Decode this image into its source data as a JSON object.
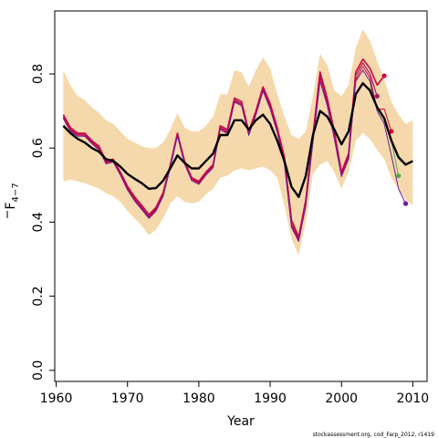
{
  "chart_data": {
    "type": "line",
    "xlabel": "Year",
    "ylabel": "F",
    "ylabel_subscript": "4−7",
    "footer": "stockassessment.org, cod_Farp_2012, r1419",
    "xlim": [
      1959.8,
      2012.0
    ],
    "ylim": [
      -0.03,
      0.97
    ],
    "x_ticks": [
      1960,
      1970,
      1980,
      1990,
      2000,
      2010
    ],
    "y_ticks": [
      0.0,
      0.2,
      0.4,
      0.6,
      0.8
    ],
    "y_tick_labels": [
      "0.0",
      "0.2",
      "0.4",
      "0.6",
      "0.8"
    ],
    "colors": {
      "band": "#f5d9ac",
      "main": "#000000",
      "retro_a": "#d6003a",
      "retro_b": "#9a1a6a",
      "retro_c": "#6a1a9a",
      "retro_d": "#5aa84a"
    },
    "band": {
      "x": [
        1961,
        1962,
        1963,
        1964,
        1965,
        1966,
        1967,
        1968,
        1969,
        1970,
        1971,
        1972,
        1973,
        1974,
        1975,
        1976,
        1977,
        1978,
        1979,
        1980,
        1981,
        1982,
        1983,
        1984,
        1985,
        1986,
        1987,
        1988,
        1989,
        1990,
        1991,
        1992,
        1993,
        1994,
        1995,
        1996,
        1997,
        1998,
        1999,
        2000,
        2001,
        2002,
        2003,
        2004,
        2005,
        2006,
        2007,
        2008,
        2009,
        2010
      ],
      "upper": [
        0.81,
        0.77,
        0.74,
        0.73,
        0.71,
        0.695,
        0.675,
        0.665,
        0.645,
        0.625,
        0.615,
        0.605,
        0.6,
        0.6,
        0.615,
        0.65,
        0.695,
        0.655,
        0.645,
        0.645,
        0.66,
        0.685,
        0.745,
        0.745,
        0.81,
        0.805,
        0.765,
        0.81,
        0.845,
        0.815,
        0.745,
        0.685,
        0.635,
        0.625,
        0.645,
        0.74,
        0.855,
        0.825,
        0.755,
        0.74,
        0.77,
        0.87,
        0.92,
        0.89,
        0.835,
        0.785,
        0.725,
        0.69,
        0.665,
        0.675
      ],
      "lower": [
        0.51,
        0.515,
        0.51,
        0.505,
        0.498,
        0.49,
        0.478,
        0.47,
        0.455,
        0.43,
        0.41,
        0.39,
        0.365,
        0.38,
        0.41,
        0.45,
        0.47,
        0.455,
        0.45,
        0.455,
        0.475,
        0.49,
        0.52,
        0.525,
        0.54,
        0.545,
        0.54,
        0.545,
        0.55,
        0.54,
        0.52,
        0.445,
        0.355,
        0.31,
        0.4,
        0.53,
        0.555,
        0.565,
        0.535,
        0.49,
        0.535,
        0.62,
        0.64,
        0.625,
        0.595,
        0.57,
        0.52,
        0.49,
        0.46,
        0.445
      ]
    },
    "series": [
      {
        "color": "main",
        "width": 2.4,
        "x": [
          1961,
          1962,
          1963,
          1964,
          1965,
          1966,
          1967,
          1968,
          1969,
          1970,
          1971,
          1972,
          1973,
          1974,
          1975,
          1976,
          1977,
          1978,
          1979,
          1980,
          1981,
          1982,
          1983,
          1984,
          1985,
          1986,
          1987,
          1988,
          1989,
          1990,
          1991,
          1992,
          1993,
          1994,
          1995,
          1996,
          1997,
          1998,
          1999,
          2000,
          2001,
          2002,
          2003,
          2004,
          2005,
          2006,
          2007,
          2008,
          2009,
          2010
        ],
        "y": [
          0.66,
          0.64,
          0.625,
          0.615,
          0.6,
          0.59,
          0.57,
          0.565,
          0.55,
          0.53,
          0.517,
          0.505,
          0.49,
          0.492,
          0.512,
          0.545,
          0.58,
          0.56,
          0.545,
          0.545,
          0.565,
          0.585,
          0.635,
          0.635,
          0.675,
          0.675,
          0.65,
          0.675,
          0.69,
          0.665,
          0.62,
          0.565,
          0.495,
          0.468,
          0.525,
          0.635,
          0.7,
          0.685,
          0.65,
          0.61,
          0.645,
          0.745,
          0.775,
          0.755,
          0.71,
          0.68,
          0.62,
          0.575,
          0.555,
          0.565
        ]
      },
      {
        "color": "retro_a",
        "width": 1.6,
        "marker_year": 2006,
        "marker_value": 0.795,
        "x": [
          1961,
          1962,
          1963,
          1964,
          1965,
          1966,
          1967,
          1968,
          1969,
          1970,
          1971,
          1972,
          1973,
          1974,
          1975,
          1976,
          1977,
          1978,
          1979,
          1980,
          1981,
          1982,
          1983,
          1984,
          1985,
          1986,
          1987,
          1988,
          1989,
          1990,
          1991,
          1992,
          1993,
          1994,
          1995,
          1996,
          1997,
          1998,
          1999,
          2000,
          2001,
          2002,
          2003,
          2004,
          2005,
          2006
        ],
        "y": [
          0.69,
          0.655,
          0.64,
          0.64,
          0.62,
          0.605,
          0.565,
          0.57,
          0.535,
          0.497,
          0.468,
          0.445,
          0.42,
          0.44,
          0.48,
          0.555,
          0.64,
          0.565,
          0.52,
          0.51,
          0.535,
          0.555,
          0.66,
          0.65,
          0.735,
          0.725,
          0.645,
          0.7,
          0.765,
          0.72,
          0.655,
          0.575,
          0.405,
          0.36,
          0.46,
          0.635,
          0.805,
          0.735,
          0.645,
          0.535,
          0.585,
          0.805,
          0.84,
          0.815,
          0.77,
          0.795
        ]
      },
      {
        "color": "retro_b",
        "width": 1.2,
        "marker_year": 2005,
        "marker_value": 0.74,
        "x": [
          1961,
          1962,
          1963,
          1964,
          1965,
          1966,
          1967,
          1968,
          1969,
          1970,
          1971,
          1972,
          1973,
          1974,
          1975,
          1976,
          1977,
          1978,
          1979,
          1980,
          1981,
          1982,
          1983,
          1984,
          1985,
          1986,
          1987,
          1988,
          1989,
          1990,
          1991,
          1992,
          1993,
          1994,
          1995,
          1996,
          1997,
          1998,
          1999,
          2000,
          2001,
          2002,
          2003,
          2004,
          2005
        ],
        "y": [
          0.685,
          0.65,
          0.637,
          0.637,
          0.617,
          0.6,
          0.562,
          0.567,
          0.532,
          0.493,
          0.463,
          0.44,
          0.416,
          0.436,
          0.476,
          0.552,
          0.637,
          0.562,
          0.517,
          0.507,
          0.532,
          0.552,
          0.656,
          0.645,
          0.73,
          0.72,
          0.64,
          0.695,
          0.76,
          0.712,
          0.648,
          0.565,
          0.395,
          0.355,
          0.452,
          0.625,
          0.795,
          0.728,
          0.638,
          0.53,
          0.58,
          0.795,
          0.83,
          0.8,
          0.74
        ]
      },
      {
        "color": "retro_a",
        "width": 1.0,
        "marker_year": 2007,
        "marker_value": 0.645,
        "x": [
          1961,
          1962,
          1963,
          1964,
          1965,
          1966,
          1967,
          1968,
          1969,
          1970,
          1971,
          1972,
          1973,
          1974,
          1975,
          1976,
          1977,
          1978,
          1979,
          1980,
          1981,
          1982,
          1983,
          1984,
          1985,
          1986,
          1987,
          1988,
          1989,
          1990,
          1991,
          1992,
          1993,
          1994,
          1995,
          1996,
          1997,
          1998,
          1999,
          2000,
          2001,
          2002,
          2003,
          2004,
          2005,
          2006,
          2007
        ],
        "y": [
          0.682,
          0.648,
          0.635,
          0.634,
          0.615,
          0.598,
          0.56,
          0.565,
          0.53,
          0.49,
          0.46,
          0.437,
          0.413,
          0.433,
          0.473,
          0.55,
          0.635,
          0.56,
          0.515,
          0.505,
          0.53,
          0.55,
          0.653,
          0.642,
          0.727,
          0.717,
          0.637,
          0.692,
          0.757,
          0.709,
          0.645,
          0.56,
          0.39,
          0.352,
          0.448,
          0.62,
          0.79,
          0.722,
          0.632,
          0.527,
          0.575,
          0.785,
          0.82,
          0.79,
          0.705,
          0.705,
          0.645
        ]
      },
      {
        "color": "retro_c",
        "width": 1.0,
        "marker_year": 2009,
        "marker_value": 0.45,
        "x": [
          1961,
          1962,
          1963,
          1964,
          1965,
          1966,
          1967,
          1968,
          1969,
          1970,
          1971,
          1972,
          1973,
          1974,
          1975,
          1976,
          1977,
          1978,
          1979,
          1980,
          1981,
          1982,
          1983,
          1984,
          1985,
          1986,
          1987,
          1988,
          1989,
          1990,
          1991,
          1992,
          1993,
          1994,
          1995,
          1996,
          1997,
          1998,
          1999,
          2000,
          2001,
          2002,
          2003,
          2004,
          2005,
          2006,
          2007,
          2008,
          2009
        ],
        "y": [
          0.68,
          0.645,
          0.632,
          0.632,
          0.612,
          0.595,
          0.557,
          0.562,
          0.527,
          0.487,
          0.457,
          0.434,
          0.41,
          0.43,
          0.47,
          0.547,
          0.632,
          0.557,
          0.512,
          0.502,
          0.527,
          0.547,
          0.65,
          0.639,
          0.724,
          0.714,
          0.634,
          0.689,
          0.754,
          0.706,
          0.642,
          0.556,
          0.386,
          0.348,
          0.444,
          0.615,
          0.78,
          0.715,
          0.625,
          0.523,
          0.57,
          0.78,
          0.81,
          0.78,
          0.7,
          0.665,
          0.58,
          0.49,
          0.45
        ]
      },
      {
        "color": "retro_d",
        "width": 1.0,
        "marker_year": 2008,
        "marker_value": 0.525,
        "x": [
          2004,
          2005,
          2006,
          2007,
          2008
        ],
        "y": [
          0.765,
          0.705,
          0.68,
          0.62,
          0.525
        ]
      }
    ]
  }
}
